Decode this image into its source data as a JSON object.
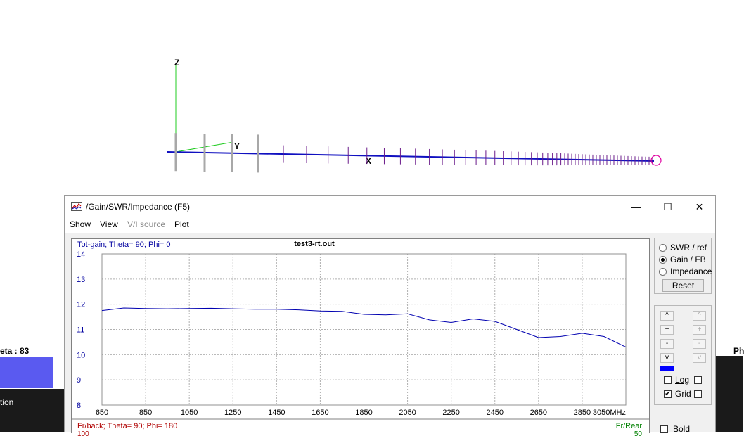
{
  "axes_labels": {
    "z": "Z",
    "y": "Y",
    "x": "X"
  },
  "background": {
    "left_text": "eta : 83",
    "left_label": "tion",
    "right_text": "Ph"
  },
  "window": {
    "title": "/Gain/SWR/Impedance (F5)",
    "controls": {
      "minimize": "—",
      "maximize": "☐",
      "close": "✕"
    },
    "menu": [
      {
        "label": "Show",
        "enabled": true
      },
      {
        "label": "View",
        "enabled": true
      },
      {
        "label": "V/I source",
        "enabled": false
      },
      {
        "label": "Plot",
        "enabled": true
      }
    ]
  },
  "chart_data": {
    "type": "line",
    "title": "test3-rt.out",
    "series_label": "Tot-gain; Theta= 90; Phi= 0",
    "x_unit": "MHz",
    "xlim": [
      650,
      3050
    ],
    "ylim": [
      8,
      14
    ],
    "x_ticks": [
      650,
      850,
      1050,
      1250,
      1450,
      1650,
      1850,
      2050,
      2250,
      2450,
      2650,
      2850,
      3050
    ],
    "y_ticks": [
      8,
      9,
      10,
      11,
      12,
      13,
      14
    ],
    "grid": true,
    "series": [
      {
        "color": "#0000b0",
        "x": [
          650,
          750,
          850,
          950,
          1050,
          1150,
          1250,
          1350,
          1450,
          1550,
          1650,
          1750,
          1850,
          1950,
          2050,
          2150,
          2250,
          2350,
          2450,
          2550,
          2650,
          2750,
          2850,
          2950,
          3050
        ],
        "y": [
          11.75,
          11.85,
          11.83,
          11.82,
          11.83,
          11.84,
          11.82,
          11.8,
          11.8,
          11.78,
          11.73,
          11.72,
          11.6,
          11.58,
          11.62,
          11.38,
          11.28,
          11.42,
          11.32,
          11.0,
          10.68,
          10.72,
          10.85,
          10.72,
          10.3
        ]
      }
    ],
    "second_chart_label": "Fr/back; Theta= 90; Phi= 180",
    "second_chart_right_label": "Fr/Rear",
    "second_chart_top_tick": "100",
    "second_chart_right_tick": "50"
  },
  "controls": {
    "radios": [
      {
        "label": "SWR / ref",
        "checked": false
      },
      {
        "label": "Gain / FB",
        "checked": true
      },
      {
        "label": "Impedance",
        "checked": false
      }
    ],
    "reset_label": "Reset",
    "scale_buttons_left": [
      "^",
      "+",
      "-",
      "v"
    ],
    "scale_buttons_right": [
      "^",
      "+",
      "-",
      "v"
    ],
    "series_color": "#0000ff",
    "log_label": "Log",
    "log_checked": false,
    "grid_label": "Grid",
    "grid_checked": true,
    "bold_label": "Bold",
    "bold_checked": false
  }
}
